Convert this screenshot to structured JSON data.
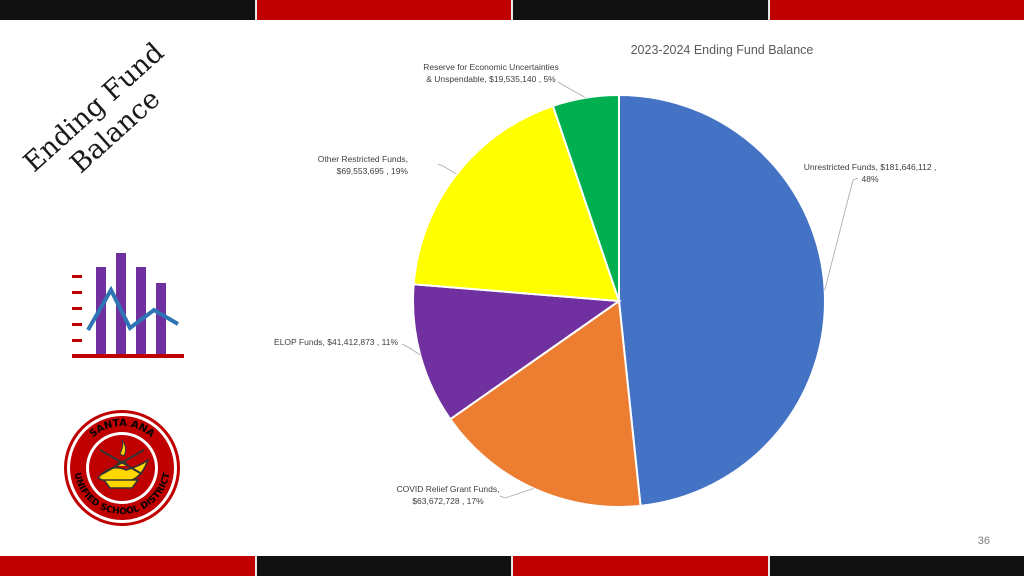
{
  "slide": {
    "title_lines": [
      "Ending Fund",
      "Balance"
    ],
    "page_number": "36"
  },
  "logo": {
    "text_top": "SANTA ANA",
    "text_bottom": "UNIFIED SCHOOL DISTRICT"
  },
  "colors": {
    "band_black": "#111111",
    "band_red": "#c00000"
  },
  "chart_data": {
    "type": "pie",
    "title": "2023-2024 Ending Fund Balance",
    "slices": [
      {
        "label_lines": [
          "Unrestricted Funds, $181,646,112 ,",
          "48%"
        ],
        "value": 181646112,
        "percent": 48,
        "color": "#4472c4"
      },
      {
        "label_lines": [
          "COVID Relief Grant Funds,",
          "$63,672,728 , 17%"
        ],
        "value": 63672728,
        "percent": 17,
        "color": "#ed7d31"
      },
      {
        "label_lines": [
          "ELOP Funds, $41,412,873 , 11%"
        ],
        "value": 41412873,
        "percent": 11,
        "color": "#7030a0"
      },
      {
        "label_lines": [
          "Other Restricted Funds,",
          "$69,553,695 , 19%"
        ],
        "value": 69553695,
        "percent": 19,
        "color": "#ffff00"
      },
      {
        "label_lines": [
          "Reserve for Economic Uncertainties",
          "& Unspendable, $19,535,140 , 5%"
        ],
        "value": 19535140,
        "percent": 5,
        "color": "#00b050"
      }
    ]
  }
}
